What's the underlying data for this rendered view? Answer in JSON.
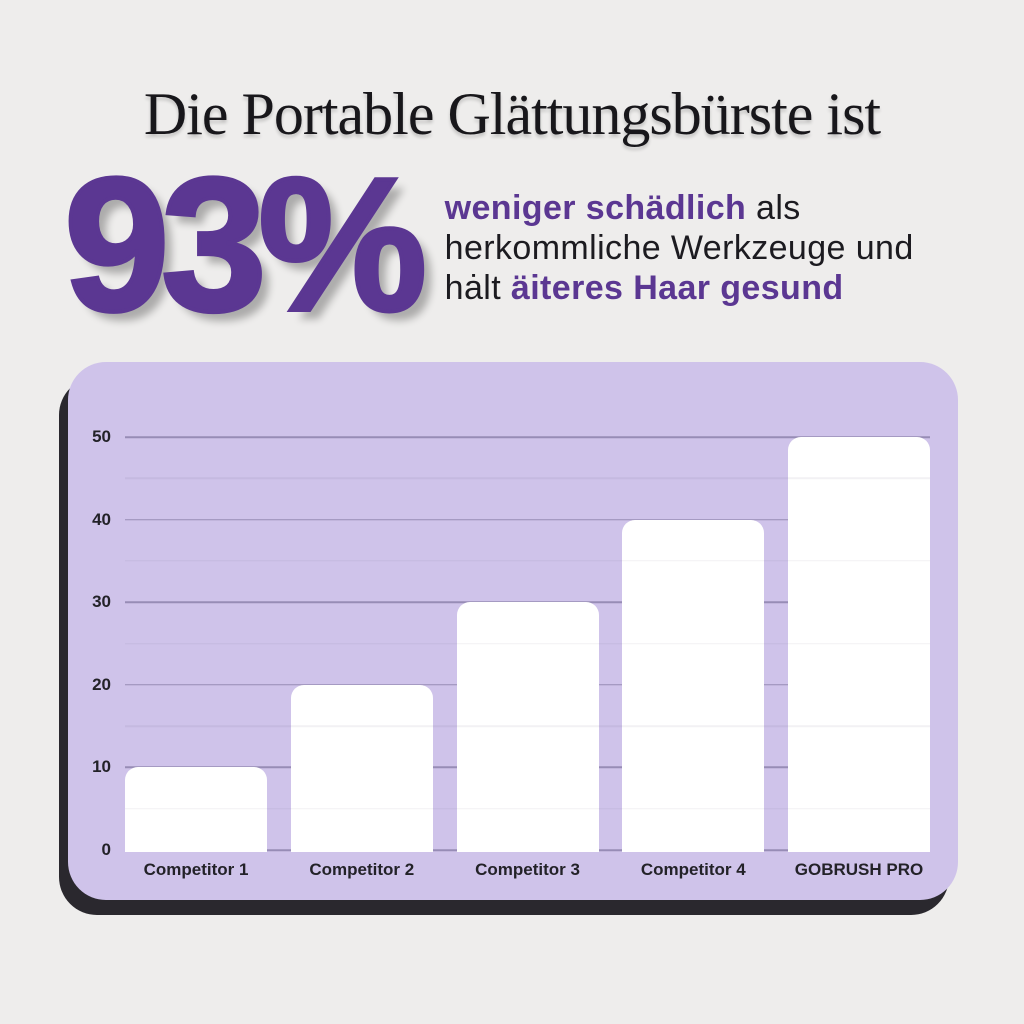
{
  "theme": {
    "background": "#eeedec",
    "accent_purple": "#5b3792",
    "panel_lavender": "#cfc3ea",
    "panel_shadow": "#2a282e",
    "bar_white": "#ffffff",
    "text_dark": "#1c1b20"
  },
  "header": {
    "title": "Die Portable Glättungsbürste ist"
  },
  "stat": {
    "value": "93%",
    "line1_bold": "weniger schädlich",
    "line1_regular": " als",
    "line2_regular": "herkommliche Werkzeuge und",
    "line3_regular": "hȧlt ",
    "line3_bold": "äiteres Haar gesund"
  },
  "chart_data": {
    "type": "bar",
    "categories": [
      "Competitor 1",
      "Competitor 2",
      "Competitor 3",
      "Competitor 4",
      "GOBRUSH PRO"
    ],
    "values": [
      10,
      20,
      30,
      40,
      50
    ],
    "yticks": [
      0,
      10,
      20,
      30,
      40,
      50
    ],
    "ylim": [
      0,
      50
    ],
    "title": "",
    "xlabel": "",
    "ylabel": "",
    "grid": "horizontal",
    "legend": "none",
    "bar_color": "#ffffff",
    "panel_color": "#cfc3ea"
  }
}
